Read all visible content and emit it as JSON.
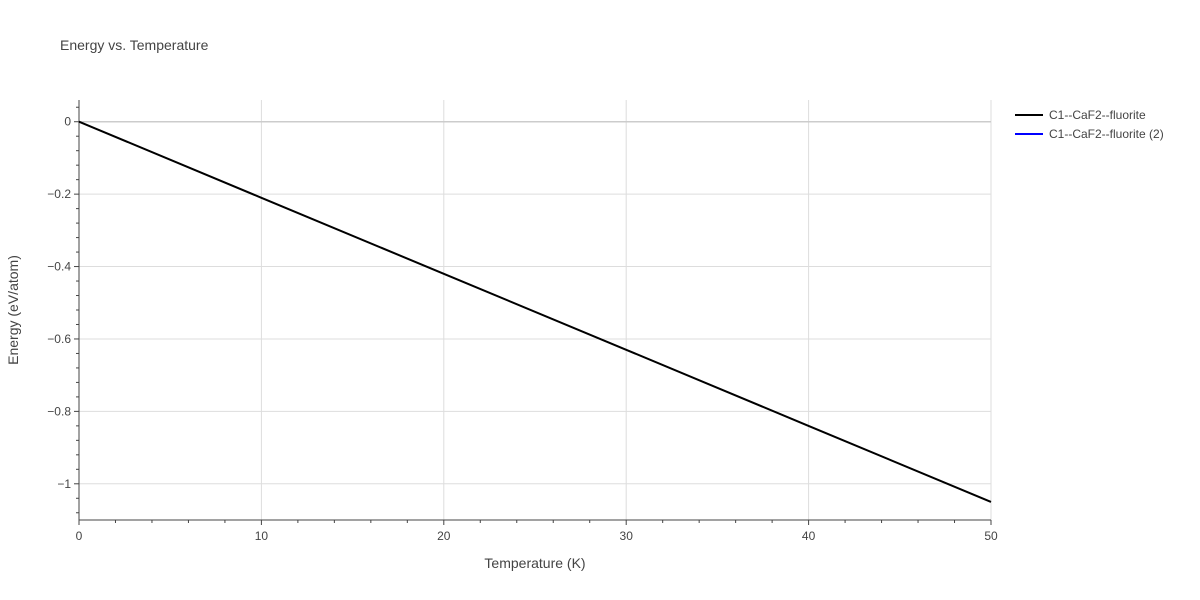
{
  "chart_data": {
    "type": "line",
    "title": "Energy vs. Temperature",
    "xlabel": "Temperature (K)",
    "ylabel": "Energy (eV/atom)",
    "xlim": [
      0,
      50
    ],
    "ylim": [
      -1.1,
      0.06
    ],
    "x_ticks": [
      0,
      10,
      20,
      30,
      40,
      50
    ],
    "x_tick_labels": [
      "0",
      "10",
      "20",
      "30",
      "40",
      "50"
    ],
    "y_ticks": [
      0,
      -0.2,
      -0.4,
      -0.6,
      -0.8,
      -1
    ],
    "y_tick_labels": [
      "0",
      "−0.2",
      "−0.4",
      "−0.6",
      "−0.8",
      "−1"
    ],
    "grid": true,
    "legend_position": "top-right outside",
    "series": [
      {
        "name": "C1--CaF2--fluorite",
        "color": "#000000",
        "x": [
          0,
          10,
          20,
          30,
          40,
          50
        ],
        "y": [
          0,
          -0.21,
          -0.42,
          -0.63,
          -0.84,
          -1.05
        ]
      },
      {
        "name": "C1--CaF2--fluorite (2)",
        "color": "#0000ff",
        "x": [],
        "y": []
      }
    ]
  }
}
